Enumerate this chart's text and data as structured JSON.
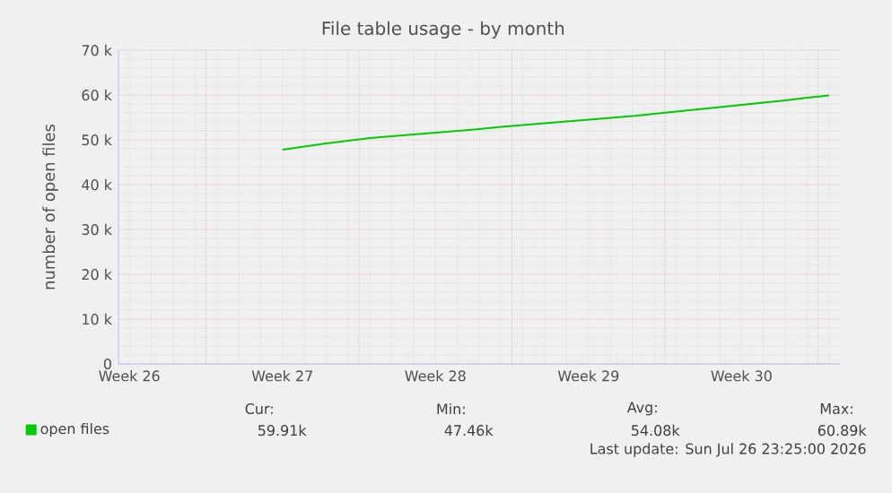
{
  "chart_data": {
    "type": "line",
    "title": "File table usage - by month",
    "ylabel": "number of open files",
    "categories": [
      "Week 26",
      null,
      null,
      null,
      null,
      null,
      null,
      "Week 27",
      null,
      null,
      null,
      null,
      null,
      null,
      "Week 28",
      null,
      null,
      null,
      null,
      null,
      null,
      "Week 29",
      null,
      null,
      null,
      null,
      null,
      null,
      "Week 30",
      null,
      null,
      null,
      null
    ],
    "ylim": [
      0,
      70000
    ],
    "yticks": [
      0,
      {
        "value": 10000,
        "label": "10 k"
      },
      {
        "value": 20000,
        "label": "20 k"
      },
      {
        "value": 30000,
        "label": "30 k"
      },
      {
        "value": 40000,
        "label": "40 k"
      },
      {
        "value": 50000,
        "label": "50 k"
      },
      {
        "value": 60000,
        "label": "60 k"
      },
      {
        "value": 70000,
        "label": "70 k"
      }
    ],
    "grid": true,
    "legend": "bottom left",
    "series": [
      {
        "name": "open files",
        "color": "#00cc00",
        "values": [
          null,
          null,
          null,
          null,
          null,
          null,
          null,
          47800,
          48500,
          49200,
          49800,
          50400,
          50800,
          51200,
          51600,
          52000,
          52400,
          52900,
          53300,
          53700,
          54100,
          54500,
          54900,
          55300,
          55800,
          56300,
          56800,
          57300,
          57800,
          58300,
          58800,
          59400,
          59900
        ]
      }
    ],
    "annotations": [
      "Cur:",
      "59.91k",
      "Min:",
      "47.46k",
      "Avg:",
      "54.08k",
      "Max:",
      "60.89k",
      "Last update: Sun Jul 26 23:25:00 2026"
    ]
  }
}
